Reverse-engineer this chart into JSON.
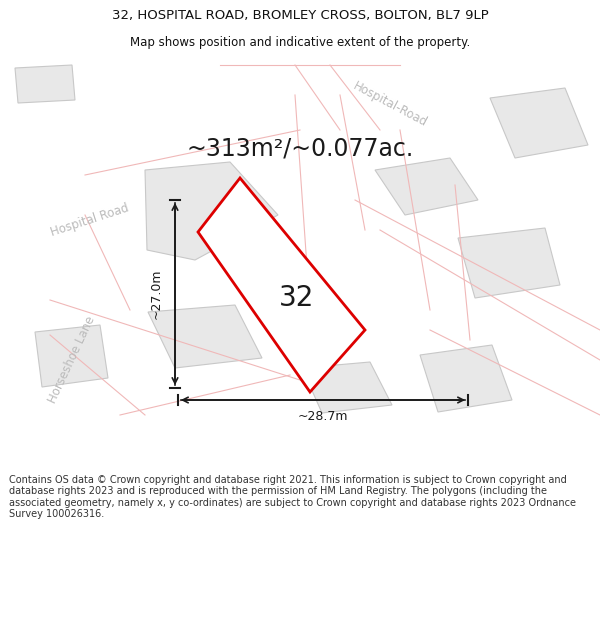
{
  "title_line1": "32, HOSPITAL ROAD, BROMLEY CROSS, BOLTON, BL7 9LP",
  "title_line2": "Map shows position and indicative extent of the property.",
  "area_text": "~313m²/~0.077ac.",
  "label_32": "32",
  "dim_vertical": "~27.0m",
  "dim_horizontal": "~28.7m",
  "road_label_hospital_top": "Hospital-Road",
  "road_label_hospital_left": "Hospital Road",
  "road_label_horseshoe": "Horseshoe Lane",
  "footer_text": "Contains OS data © Crown copyright and database right 2021. This information is subject to Crown copyright and database rights 2023 and is reproduced with the permission of HM Land Registry. The polygons (including the associated geometry, namely x, y co-ordinates) are subject to Crown copyright and database rights 2023 Ordnance Survey 100026316.",
  "bg_color": "#ffffff",
  "map_bg": "#ffffff",
  "building_fill": "#e8e8e8",
  "building_stroke": "#c8c8c8",
  "road_line_color": "#f0b8b8",
  "plot_stroke": "#dd0000",
  "plot_fill": "#ffffff",
  "dim_color": "#1a1a1a",
  "text_color": "#1a1a1a",
  "road_text_color": "#bbbbbb",
  "title_color": "#111111",
  "footer_color": "#333333",
  "title_fontsize": 9.5,
  "subtitle_fontsize": 8.5,
  "area_fontsize": 17,
  "label32_fontsize": 20,
  "dim_fontsize": 9,
  "road_fontsize": 8.5
}
